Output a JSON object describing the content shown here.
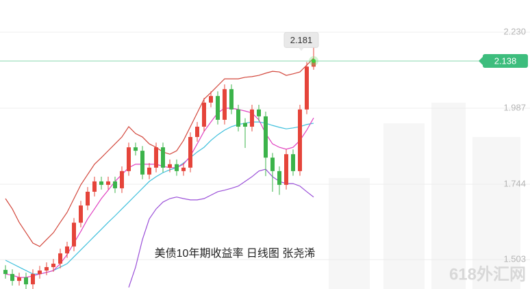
{
  "chart_data": {
    "type": "candlestick",
    "title": "美债10年期收益率 日线图  张尧浠",
    "watermark": "618外汇网",
    "up_color": "#e5443a",
    "down_color": "#3bb34a",
    "open": [
      1.47,
      1.457,
      1.435,
      1.446,
      1.424,
      1.457,
      1.468,
      1.479,
      1.49,
      1.523,
      1.545,
      1.621,
      1.676,
      1.72,
      1.753,
      1.742,
      1.753,
      1.731,
      1.786,
      1.862,
      1.851,
      1.775,
      1.797,
      1.862,
      1.797,
      1.808,
      1.786,
      1.797,
      1.895,
      1.928,
      2.005,
      2.026,
      1.95,
      2.048,
      1.983,
      1.94,
      1.928,
      1.983,
      1.961,
      1.829,
      1.786,
      1.742,
      1.84,
      1.786,
      1.983,
      2.12
    ],
    "high": [
      1.485,
      1.472,
      1.461,
      1.461,
      1.472,
      1.483,
      1.494,
      1.505,
      1.538,
      1.56,
      1.636,
      1.691,
      1.735,
      1.768,
      1.768,
      1.768,
      1.768,
      1.801,
      1.877,
      1.877,
      1.866,
      1.812,
      1.877,
      1.877,
      1.823,
      1.823,
      1.812,
      1.91,
      1.943,
      2.02,
      2.041,
      2.041,
      2.063,
      2.063,
      1.998,
      1.955,
      1.998,
      1.998,
      1.976,
      1.844,
      1.801,
      1.855,
      1.855,
      1.998,
      2.135,
      2.181
    ],
    "low": [
      1.442,
      1.42,
      1.42,
      1.409,
      1.409,
      1.442,
      1.453,
      1.464,
      1.475,
      1.508,
      1.53,
      1.606,
      1.661,
      1.705,
      1.727,
      1.727,
      1.716,
      1.716,
      1.771,
      1.836,
      1.76,
      1.76,
      1.782,
      1.782,
      1.782,
      1.771,
      1.771,
      1.782,
      1.88,
      1.913,
      1.99,
      1.935,
      1.935,
      1.968,
      1.913,
      1.86,
      1.913,
      1.946,
      1.77,
      1.72,
      1.71,
      1.727,
      1.771,
      1.771,
      1.968,
      2.11
    ],
    "close": [
      1.457,
      1.435,
      1.446,
      1.424,
      1.457,
      1.468,
      1.479,
      1.49,
      1.523,
      1.545,
      1.621,
      1.676,
      1.72,
      1.753,
      1.742,
      1.753,
      1.731,
      1.786,
      1.862,
      1.851,
      1.775,
      1.797,
      1.862,
      1.797,
      1.808,
      1.786,
      1.797,
      1.895,
      1.928,
      2.005,
      2.026,
      1.95,
      2.048,
      1.983,
      1.928,
      1.928,
      1.983,
      1.961,
      1.829,
      1.786,
      1.742,
      1.84,
      1.786,
      1.983,
      2.12,
      2.138
    ],
    "lines": [
      {
        "color": "#d2453a",
        "values": [
          1.698,
          1.665,
          1.622,
          1.589,
          1.556,
          1.545,
          1.567,
          1.589,
          1.622,
          1.654,
          1.698,
          1.742,
          1.775,
          1.808,
          1.829,
          1.851,
          1.873,
          1.895,
          1.928,
          1.906,
          1.895,
          1.873,
          1.862,
          1.847,
          1.84,
          1.851,
          1.884,
          1.928,
          1.972,
          2.016,
          2.037,
          2.059,
          2.081,
          2.081,
          2.081,
          2.086,
          2.088,
          2.092,
          2.099,
          2.105,
          2.103,
          2.092,
          2.097,
          2.103,
          2.125,
          2.147
        ]
      },
      {
        "color": "#3dbfdc",
        "values": [
          1.501,
          1.49,
          1.479,
          1.468,
          1.457,
          1.457,
          1.462,
          1.468,
          1.479,
          1.49,
          1.512,
          1.534,
          1.556,
          1.578,
          1.6,
          1.622,
          1.643,
          1.665,
          1.687,
          1.709,
          1.731,
          1.753,
          1.768,
          1.781,
          1.79,
          1.797,
          1.812,
          1.829,
          1.847,
          1.862,
          1.884,
          1.902,
          1.917,
          1.928,
          1.935,
          1.939,
          1.943,
          1.943,
          1.939,
          1.932,
          1.926,
          1.921,
          1.924,
          1.928,
          1.935,
          1.939
        ]
      },
      {
        "color": "#9a4fd8",
        "values": [
          null,
          null,
          null,
          null,
          null,
          null,
          null,
          null,
          null,
          null,
          null,
          null,
          null,
          null,
          null,
          null,
          null,
          null,
          1.414,
          1.479,
          1.567,
          1.633,
          1.665,
          1.687,
          1.698,
          1.703,
          1.698,
          1.694,
          1.694,
          1.698,
          1.709,
          1.72,
          1.725,
          1.731,
          1.738,
          1.753,
          1.768,
          1.786,
          1.792,
          1.768,
          1.753,
          1.746,
          1.746,
          1.738,
          1.72,
          1.703
        ]
      },
      {
        "color": "#e040c0",
        "values": [
          1.457,
          1.453,
          1.446,
          1.446,
          1.451,
          1.457,
          1.462,
          1.468,
          1.49,
          1.519,
          1.556,
          1.593,
          1.633,
          1.665,
          1.698,
          1.725,
          1.753,
          1.775,
          1.797,
          1.808,
          1.808,
          1.808,
          1.808,
          1.801,
          1.797,
          1.797,
          1.808,
          1.834,
          1.873,
          1.913,
          1.943,
          1.972,
          1.987,
          1.987,
          1.983,
          1.978,
          1.972,
          1.95,
          1.906,
          1.873,
          1.862,
          1.856,
          1.862,
          1.884,
          1.917,
          1.956
        ]
      }
    ],
    "ylim": [
      1.409,
      2.333
    ],
    "yticks": [
      {
        "value": 2.23,
        "label": "2.230"
      },
      1.987,
      1.744,
      1.503
    ],
    "grid": true,
    "price_line_color": "#3dbd7d"
  }
}
